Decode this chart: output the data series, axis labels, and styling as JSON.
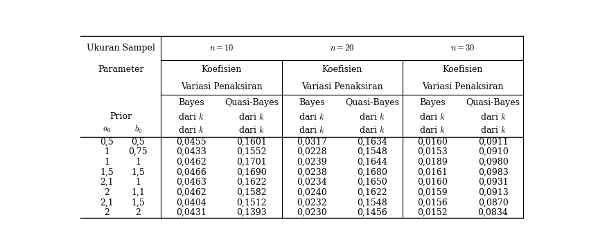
{
  "rows": [
    [
      "0,5",
      "0,5",
      "0,0455",
      "0,1601",
      "0,0317",
      "0,1634",
      "0,0160",
      "0,0911"
    ],
    [
      "1",
      "0,75",
      "0,0433",
      "0,1552",
      "0,0228",
      "0,1548",
      "0,0153",
      "0,0910"
    ],
    [
      "1",
      "1",
      "0,0462",
      "0,1701",
      "0,0239",
      "0,1644",
      "0,0189",
      "0,0980"
    ],
    [
      "1,5",
      "1,5",
      "0,0466",
      "0,1690",
      "0,0238",
      "0,1680",
      "0,0161",
      "0,0983"
    ],
    [
      "2,1",
      "1",
      "0,0463",
      "0,1622",
      "0,0234",
      "0,1650",
      "0,0160",
      "0,0931"
    ],
    [
      "2",
      "1,1",
      "0,0462",
      "0,1582",
      "0,0240",
      "0,1622",
      "0,0159",
      "0,0913"
    ],
    [
      "2,1",
      "1,5",
      "0,0404",
      "0,1512",
      "0,0232",
      "0,1548",
      "0,0156",
      "0,0870"
    ],
    [
      "2",
      "2",
      "0,0431",
      "0,1393",
      "0,0230",
      "0,1456",
      "0,0152",
      "0,0834"
    ]
  ],
  "bg_color": "white",
  "line_color": "black",
  "text_color": "black",
  "font_size": 9.0,
  "header_font_size": 9.0
}
